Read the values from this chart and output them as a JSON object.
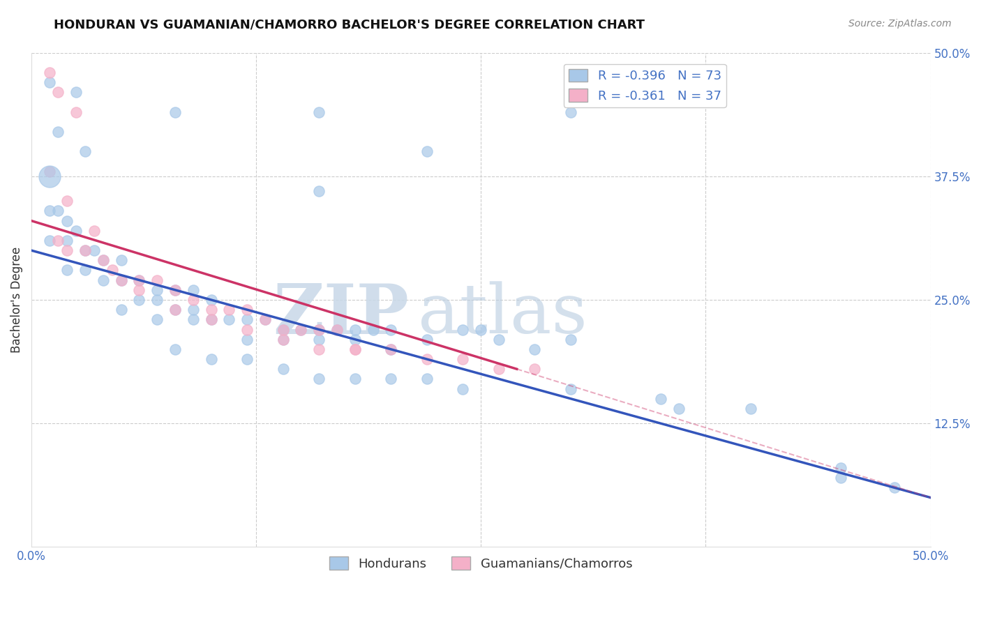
{
  "title": "HONDURAN VS GUAMANIAN/CHAMORRO BACHELOR'S DEGREE CORRELATION CHART",
  "source": "Source: ZipAtlas.com",
  "ylabel": "Bachelor's Degree",
  "xlim": [
    0.0,
    50.0
  ],
  "ylim": [
    0.0,
    50.0
  ],
  "blue_R": -0.396,
  "blue_N": 73,
  "pink_R": -0.361,
  "pink_N": 37,
  "blue_color": "#a8c8e8",
  "pink_color": "#f4b0c8",
  "blue_line_color": "#3355bb",
  "pink_line_color": "#cc3366",
  "watermark_color": "#dde8f0",
  "legend1": "Hondurans",
  "legend2": "Guamanians/Chamorros",
  "blue_scatter_x": [
    1.0,
    2.5,
    8.0,
    1.5,
    3.0,
    16.0,
    30.0,
    22.0,
    16.0,
    1.0,
    1.5,
    2.0,
    2.5,
    1.0,
    2.0,
    3.0,
    3.5,
    4.0,
    5.0,
    2.0,
    3.0,
    4.0,
    5.0,
    6.0,
    7.0,
    8.0,
    9.0,
    10.0,
    6.0,
    7.0,
    8.0,
    9.0,
    10.0,
    11.0,
    12.0,
    13.0,
    14.0,
    15.0,
    16.0,
    17.0,
    18.0,
    19.0,
    20.0,
    12.0,
    14.0,
    16.0,
    18.0,
    20.0,
    22.0,
    24.0,
    25.0,
    26.0,
    28.0,
    30.0,
    36.0,
    45.0,
    8.0,
    10.0,
    12.0,
    14.0,
    16.0,
    18.0,
    20.0,
    22.0,
    24.0,
    30.0,
    35.0,
    40.0,
    45.0,
    48.0,
    5.0,
    7.0,
    9.0
  ],
  "blue_scatter_y": [
    47.0,
    46.0,
    44.0,
    42.0,
    40.0,
    44.0,
    44.0,
    40.0,
    36.0,
    34.0,
    34.0,
    33.0,
    32.0,
    31.0,
    31.0,
    30.0,
    30.0,
    29.0,
    29.0,
    28.0,
    28.0,
    27.0,
    27.0,
    27.0,
    26.0,
    26.0,
    26.0,
    25.0,
    25.0,
    25.0,
    24.0,
    24.0,
    23.0,
    23.0,
    23.0,
    23.0,
    22.0,
    22.0,
    22.0,
    22.0,
    22.0,
    22.0,
    22.0,
    21.0,
    21.0,
    21.0,
    21.0,
    20.0,
    21.0,
    22.0,
    22.0,
    21.0,
    20.0,
    21.0,
    14.0,
    7.0,
    20.0,
    19.0,
    19.0,
    18.0,
    17.0,
    17.0,
    17.0,
    17.0,
    16.0,
    16.0,
    15.0,
    14.0,
    8.0,
    6.0,
    24.0,
    23.0,
    23.0
  ],
  "pink_scatter_x": [
    1.0,
    1.5,
    2.5,
    1.0,
    2.0,
    3.5,
    1.5,
    2.0,
    3.0,
    4.0,
    4.5,
    5.0,
    6.0,
    7.0,
    8.0,
    9.0,
    10.0,
    11.0,
    12.0,
    13.0,
    14.0,
    15.0,
    16.0,
    17.0,
    18.0,
    20.0,
    22.0,
    24.0,
    26.0,
    28.0,
    6.0,
    8.0,
    10.0,
    12.0,
    14.0,
    16.0,
    18.0
  ],
  "pink_scatter_y": [
    48.0,
    46.0,
    44.0,
    38.0,
    35.0,
    32.0,
    31.0,
    30.0,
    30.0,
    29.0,
    28.0,
    27.0,
    27.0,
    27.0,
    26.0,
    25.0,
    24.0,
    24.0,
    24.0,
    23.0,
    22.0,
    22.0,
    22.0,
    22.0,
    20.0,
    20.0,
    19.0,
    19.0,
    18.0,
    18.0,
    26.0,
    24.0,
    23.0,
    22.0,
    21.0,
    20.0,
    20.0
  ],
  "blue_line_x0": 0.0,
  "blue_line_y0": 30.0,
  "blue_line_x1": 50.0,
  "blue_line_y1": 5.0,
  "pink_line_x0": 0.0,
  "pink_line_y0": 33.0,
  "pink_line_x1": 27.0,
  "pink_line_y1": 18.0,
  "pink_dash_x0": 27.0,
  "pink_dash_y0": 18.0,
  "pink_dash_x1": 50.0,
  "pink_dash_y1": 5.0,
  "big_blue_x": 1.0,
  "big_blue_y": 37.5,
  "big_blue_size": 500
}
